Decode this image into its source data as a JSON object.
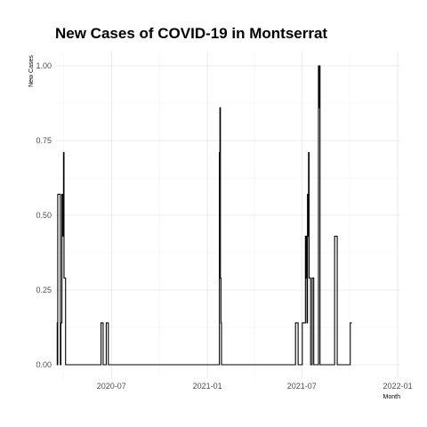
{
  "chart_data": {
    "type": "line",
    "title": "New Cases of COVID-19 in Montserrat",
    "xlabel": "Month",
    "ylabel": "New Cases",
    "x_axis": "date",
    "xlim": [
      "2020-03-15",
      "2022-01-06"
    ],
    "ylim": [
      0,
      1
    ],
    "x_ticks": [
      {
        "date": "2020-07-01",
        "label": "2020-07"
      },
      {
        "date": "2021-01-01",
        "label": "2021-01"
      },
      {
        "date": "2021-07-01",
        "label": "2021-07"
      },
      {
        "date": "2022-01-01",
        "label": "2022-01"
      }
    ],
    "y_ticks": [
      {
        "value": 0,
        "label": "0.00"
      },
      {
        "value": 0.25,
        "label": "0.25"
      },
      {
        "value": 0.5,
        "label": "0.50"
      },
      {
        "value": 0.75,
        "label": "0.75"
      },
      {
        "value": 1,
        "label": "1.00"
      }
    ],
    "grid": true,
    "legend": "none",
    "series": [
      {
        "points": [
          [
            "2020-03-18",
            0.14
          ],
          [
            "2020-03-19",
            0.0
          ],
          [
            "2020-03-20",
            0.57
          ],
          [
            "2020-03-24",
            0.57
          ],
          [
            "2020-03-25",
            0.0
          ],
          [
            "2020-03-26",
            0.14
          ],
          [
            "2020-03-28",
            0.57
          ],
          [
            "2020-03-30",
            0.43
          ],
          [
            "2020-03-31",
            0.71
          ],
          [
            "2020-04-01",
            0.29
          ],
          [
            "2020-04-03",
            0.29
          ],
          [
            "2020-04-04",
            0.0
          ],
          [
            "2020-06-10",
            0.0
          ],
          [
            "2020-06-11",
            0.14
          ],
          [
            "2020-06-14",
            0.14
          ],
          [
            "2020-06-15",
            0.0
          ],
          [
            "2020-06-20",
            0.0
          ],
          [
            "2020-06-21",
            0.14
          ],
          [
            "2020-06-24",
            0.14
          ],
          [
            "2020-06-25",
            0.0
          ],
          [
            "2021-01-22",
            0.0
          ],
          [
            "2021-01-24",
            0.71
          ],
          [
            "2021-01-25",
            0.86
          ],
          [
            "2021-01-26",
            0.29
          ],
          [
            "2021-01-27",
            0.14
          ],
          [
            "2021-01-28",
            0.0
          ],
          [
            "2021-06-18",
            0.0
          ],
          [
            "2021-06-19",
            0.14
          ],
          [
            "2021-06-23",
            0.14
          ],
          [
            "2021-06-24",
            0.0
          ],
          [
            "2021-07-01",
            0.0
          ],
          [
            "2021-07-02",
            0.14
          ],
          [
            "2021-07-07",
            0.14
          ],
          [
            "2021-07-08",
            0.43
          ],
          [
            "2021-07-09",
            0.29
          ],
          [
            "2021-07-10",
            0.43
          ],
          [
            "2021-07-11",
            0.14
          ],
          [
            "2021-07-12",
            0.57
          ],
          [
            "2021-07-13",
            0.43
          ],
          [
            "2021-07-14",
            0.71
          ],
          [
            "2021-07-15",
            0.29
          ],
          [
            "2021-07-17",
            0.29
          ],
          [
            "2021-07-18",
            0.0
          ],
          [
            "2021-07-20",
            0.0
          ],
          [
            "2021-07-21",
            0.29
          ],
          [
            "2021-07-23",
            0.29
          ],
          [
            "2021-07-24",
            0.0
          ],
          [
            "2021-08-01",
            0.0
          ],
          [
            "2021-08-02",
            1.0
          ],
          [
            "2021-08-03",
            0.86
          ],
          [
            "2021-08-04",
            1.0
          ],
          [
            "2021-08-05",
            0.0
          ],
          [
            "2021-09-01",
            0.0
          ],
          [
            "2021-09-02",
            0.43
          ],
          [
            "2021-09-06",
            0.43
          ],
          [
            "2021-09-07",
            0.0
          ],
          [
            "2021-10-01",
            0.0
          ],
          [
            "2021-10-02",
            0.14
          ],
          [
            "2021-10-05",
            0.14
          ]
        ]
      }
    ]
  }
}
